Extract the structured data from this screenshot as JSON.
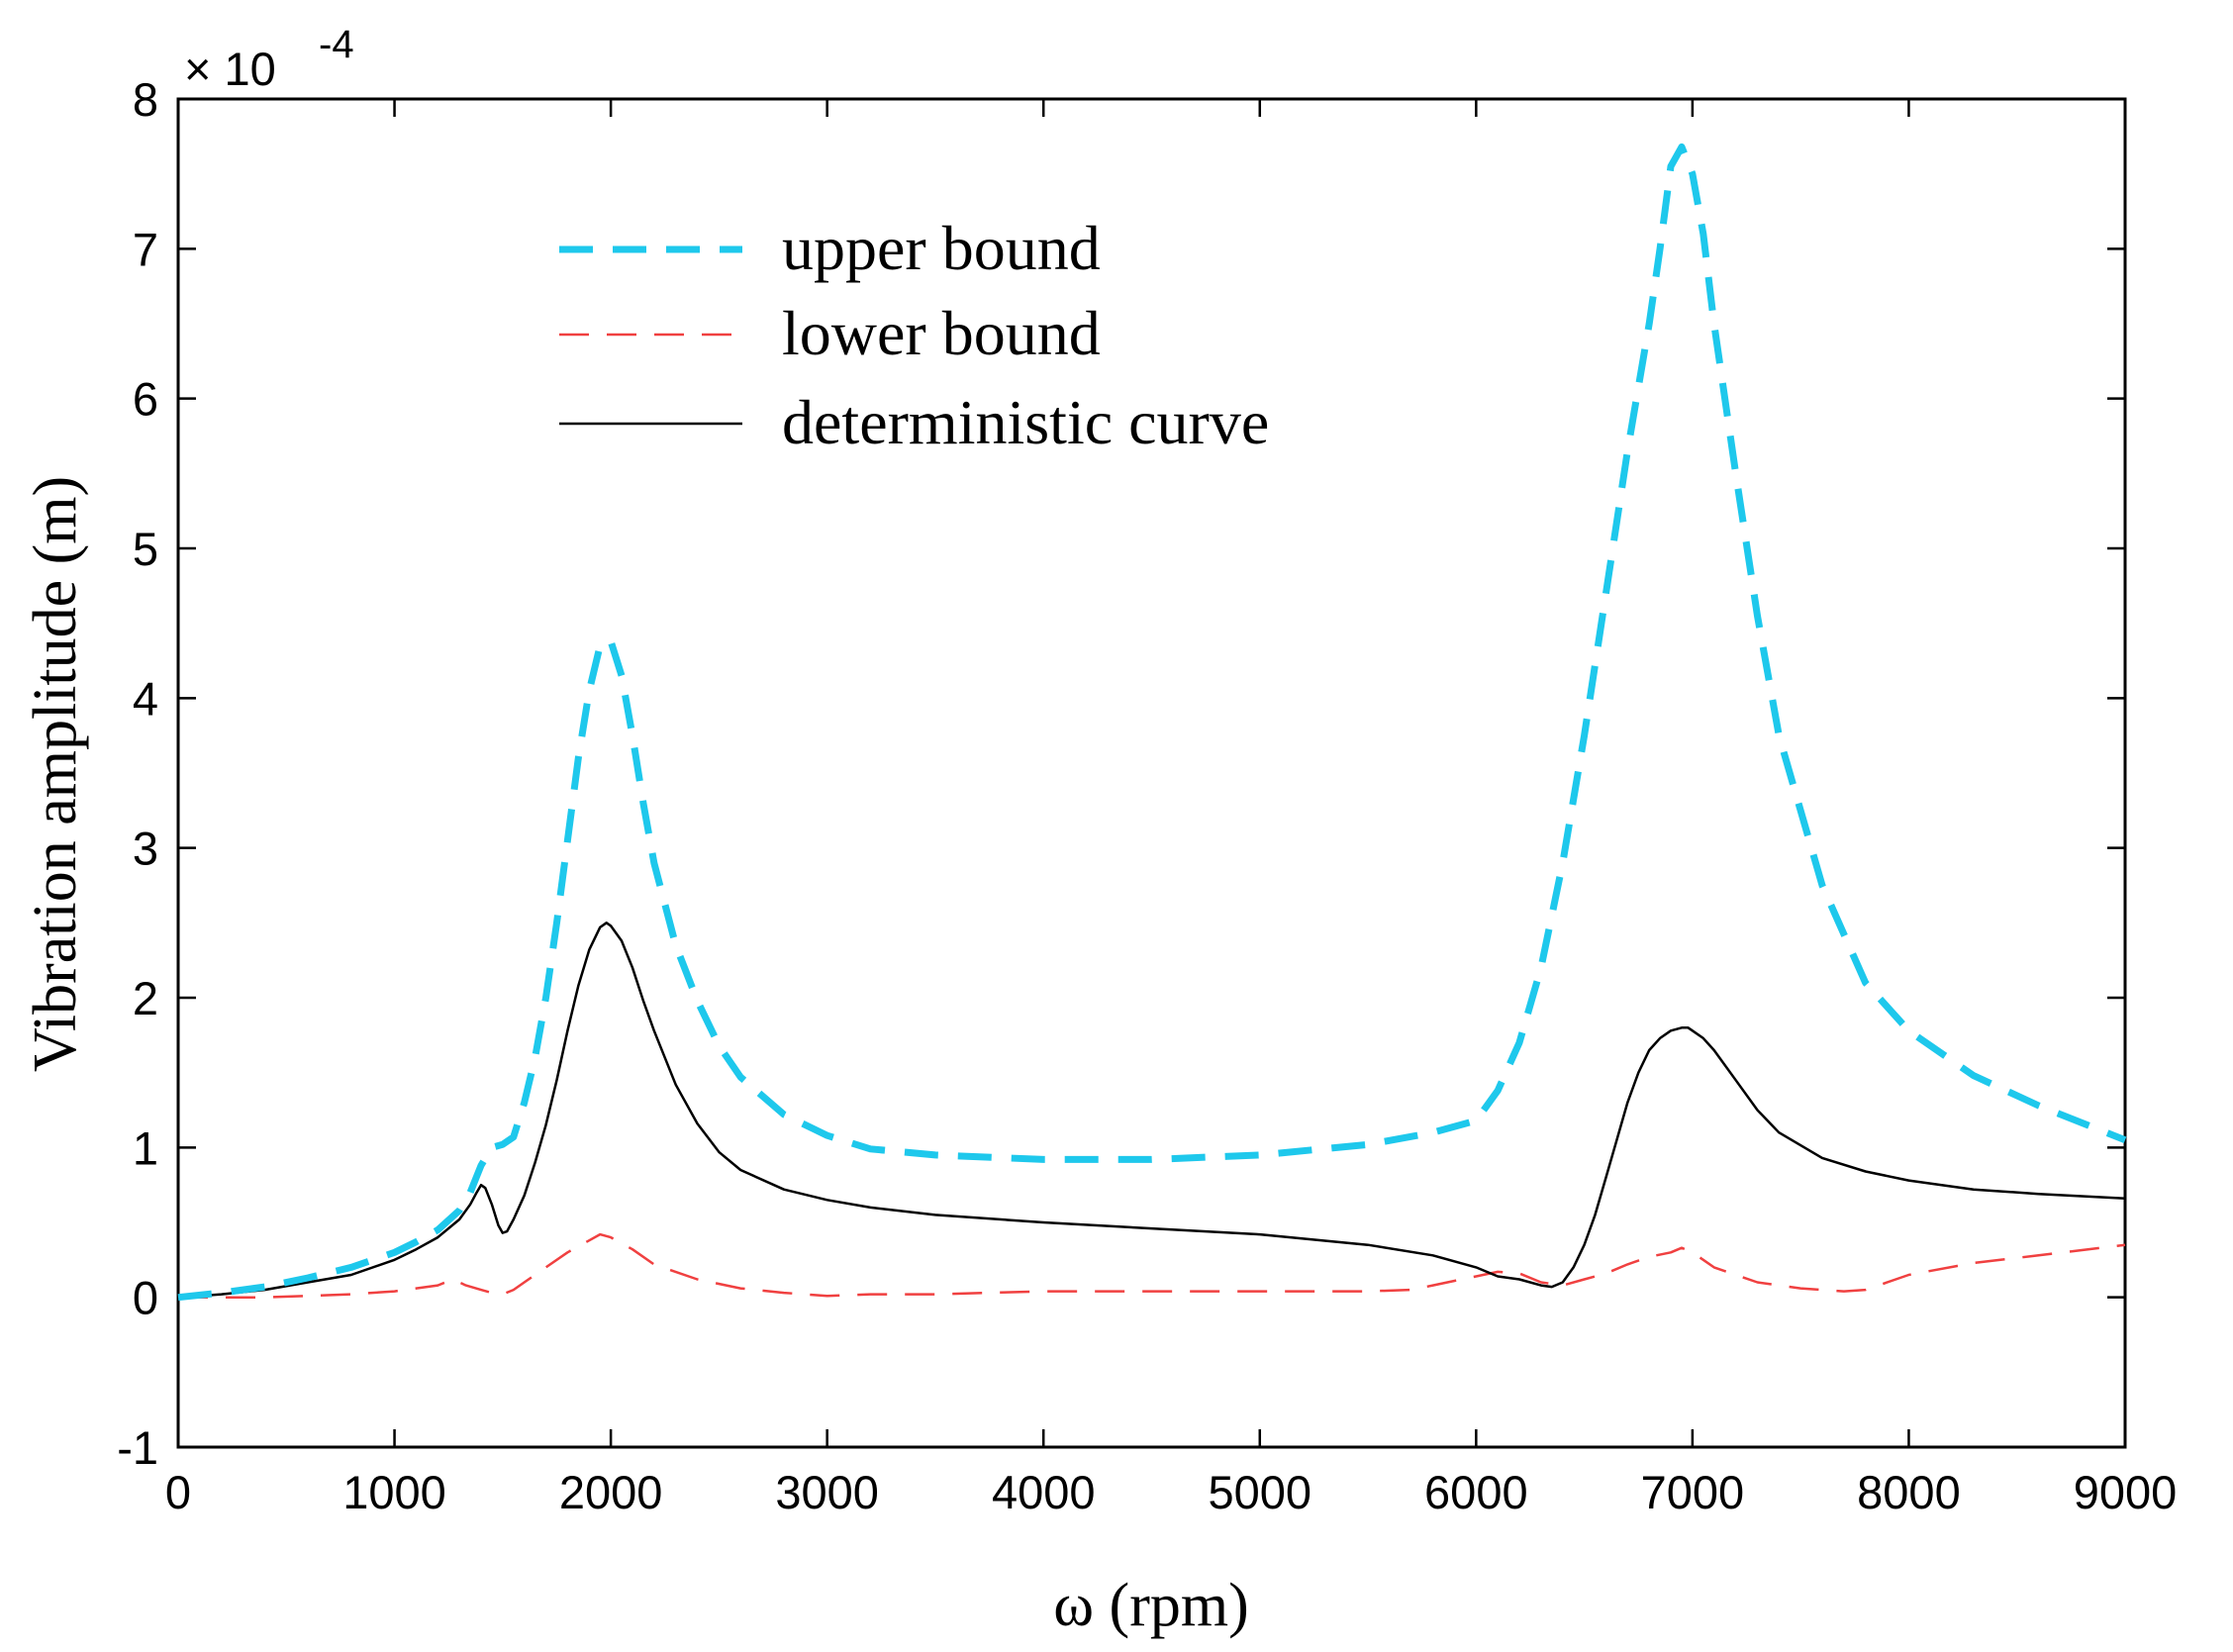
{
  "chart_data": {
    "type": "line",
    "title": "",
    "xlabel": "ω (rpm)",
    "ylabel": "Vibration amplitude (m)",
    "xlim": [
      0,
      9000
    ],
    "ylim": [
      -1,
      8
    ],
    "y_scale_label": "× 10",
    "y_scale_exponent": "-4",
    "grid": false,
    "legend_position": "top-center",
    "x_ticks": [
      0,
      1000,
      2000,
      3000,
      4000,
      5000,
      6000,
      7000,
      8000,
      9000
    ],
    "x_tick_labels": [
      "0",
      "1000",
      "2000",
      "3000",
      "4000",
      "5000",
      "6000",
      "7000",
      "8000",
      "9000"
    ],
    "y_ticks": [
      -1,
      0,
      1,
      2,
      3,
      4,
      5,
      6,
      7,
      8
    ],
    "y_tick_labels": [
      "-1",
      "0",
      "1",
      "2",
      "3",
      "4",
      "5",
      "6",
      "7",
      "8"
    ],
    "series": [
      {
        "name": "upper bound",
        "color": "#1ec8ec",
        "style": "dashed-thick",
        "x": [
          0,
          200,
          400,
          600,
          800,
          1000,
          1100,
          1200,
          1300,
          1350,
          1400,
          1450,
          1500,
          1550,
          1600,
          1650,
          1700,
          1750,
          1800,
          1850,
          1900,
          1950,
          2000,
          2050,
          2100,
          2150,
          2200,
          2300,
          2400,
          2500,
          2600,
          2800,
          3000,
          3200,
          3500,
          4000,
          4500,
          5000,
          5500,
          5800,
          6000,
          6100,
          6200,
          6300,
          6400,
          6500,
          6600,
          6700,
          6800,
          6850,
          6900,
          6950,
          7000,
          7050,
          7100,
          7200,
          7300,
          7400,
          7600,
          7800,
          8000,
          8300,
          8600,
          9000
        ],
        "y": [
          0,
          0.03,
          0.07,
          0.13,
          0.2,
          0.3,
          0.37,
          0.45,
          0.58,
          0.7,
          0.88,
          1.0,
          1.02,
          1.07,
          1.3,
          1.6,
          2.0,
          2.5,
          3.05,
          3.6,
          4.05,
          4.35,
          4.38,
          4.15,
          3.75,
          3.3,
          2.9,
          2.35,
          1.98,
          1.68,
          1.47,
          1.22,
          1.08,
          0.99,
          0.95,
          0.92,
          0.92,
          0.95,
          1.02,
          1.1,
          1.18,
          1.38,
          1.7,
          2.2,
          2.9,
          3.75,
          4.7,
          5.65,
          6.5,
          7.0,
          7.55,
          7.68,
          7.5,
          7.1,
          6.5,
          5.5,
          4.55,
          3.75,
          2.75,
          2.1,
          1.78,
          1.48,
          1.28,
          1.05
        ]
      },
      {
        "name": "lower bound",
        "color": "#f04040",
        "style": "dashed-thin",
        "x": [
          0,
          200,
          400,
          600,
          800,
          1000,
          1100,
          1200,
          1270,
          1330,
          1400,
          1450,
          1500,
          1550,
          1600,
          1700,
          1800,
          1900,
          1950,
          2000,
          2100,
          2200,
          2400,
          2600,
          2800,
          3000,
          3200,
          3500,
          4000,
          4500,
          5000,
          5500,
          5700,
          5800,
          5900,
          6000,
          6100,
          6200,
          6300,
          6400,
          6500,
          6600,
          6700,
          6800,
          6900,
          6950,
          7000,
          7050,
          7100,
          7200,
          7300,
          7500,
          7700,
          7800,
          8000,
          8300,
          8600,
          9000
        ],
        "y": [
          0,
          0,
          0,
          0.01,
          0.02,
          0.04,
          0.06,
          0.08,
          0.12,
          0.08,
          0.05,
          0.03,
          0.02,
          0.05,
          0.1,
          0.2,
          0.3,
          0.38,
          0.42,
          0.4,
          0.32,
          0.22,
          0.12,
          0.06,
          0.03,
          0.01,
          0.02,
          0.02,
          0.04,
          0.04,
          0.04,
          0.04,
          0.05,
          0.08,
          0.11,
          0.14,
          0.17,
          0.16,
          0.1,
          0.08,
          0.12,
          0.16,
          0.22,
          0.27,
          0.3,
          0.33,
          0.3,
          0.25,
          0.2,
          0.15,
          0.1,
          0.06,
          0.04,
          0.05,
          0.15,
          0.23,
          0.28,
          0.35
        ]
      },
      {
        "name": "deterministic curve",
        "color": "#000000",
        "style": "solid",
        "x": [
          0,
          200,
          400,
          600,
          800,
          1000,
          1100,
          1200,
          1300,
          1350,
          1380,
          1400,
          1420,
          1450,
          1480,
          1500,
          1520,
          1550,
          1600,
          1650,
          1700,
          1750,
          1800,
          1850,
          1900,
          1950,
          1980,
          2000,
          2050,
          2100,
          2150,
          2200,
          2300,
          2400,
          2500,
          2600,
          2800,
          3000,
          3200,
          3500,
          4000,
          4500,
          5000,
          5500,
          5800,
          6000,
          6100,
          6200,
          6300,
          6350,
          6400,
          6450,
          6500,
          6550,
          6600,
          6650,
          6700,
          6750,
          6800,
          6850,
          6900,
          6950,
          6980,
          7000,
          7050,
          7100,
          7200,
          7300,
          7400,
          7600,
          7800,
          8000,
          8300,
          8600,
          9000
        ],
        "y": [
          0,
          0.02,
          0.05,
          0.1,
          0.15,
          0.25,
          0.32,
          0.4,
          0.52,
          0.62,
          0.7,
          0.75,
          0.73,
          0.62,
          0.48,
          0.43,
          0.44,
          0.52,
          0.68,
          0.9,
          1.15,
          1.45,
          1.78,
          2.08,
          2.32,
          2.47,
          2.5,
          2.48,
          2.38,
          2.2,
          1.98,
          1.78,
          1.42,
          1.16,
          0.97,
          0.85,
          0.72,
          0.65,
          0.6,
          0.55,
          0.5,
          0.46,
          0.42,
          0.35,
          0.28,
          0.2,
          0.14,
          0.12,
          0.08,
          0.07,
          0.1,
          0.2,
          0.35,
          0.55,
          0.8,
          1.05,
          1.3,
          1.5,
          1.65,
          1.73,
          1.78,
          1.8,
          1.8,
          1.78,
          1.73,
          1.65,
          1.45,
          1.25,
          1.1,
          0.93,
          0.84,
          0.78,
          0.72,
          0.69,
          0.66
        ]
      }
    ]
  }
}
